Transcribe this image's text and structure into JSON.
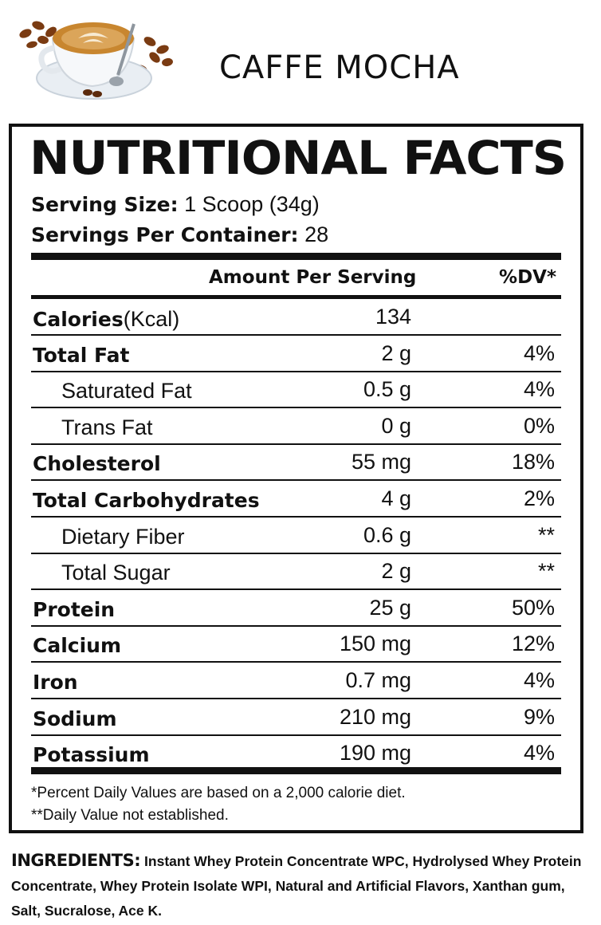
{
  "header": {
    "flavor": "CAFFE MOCHA",
    "image": "coffee-cup-with-beans"
  },
  "panel": {
    "title": "NUTRITIONAL FACTS",
    "serving_size_label": "Serving Size:",
    "serving_size_value": "1 Scoop (34g)",
    "servings_label": "Servings Per Container:",
    "servings_value": "28",
    "col_amount": "Amount Per Serving",
    "col_dv": "%DV*"
  },
  "rows": [
    {
      "name": "Calories",
      "unit": "(Kcal)",
      "amount": "134",
      "dv": "",
      "bold": true,
      "indent": false
    },
    {
      "name": "Total Fat",
      "unit": "",
      "amount": "2 g",
      "dv": "4%",
      "bold": true,
      "indent": false
    },
    {
      "name": "Saturated Fat",
      "unit": "",
      "amount": "0.5 g",
      "dv": "4%",
      "bold": false,
      "indent": true
    },
    {
      "name": "Trans Fat",
      "unit": "",
      "amount": "0 g",
      "dv": "0%",
      "bold": false,
      "indent": true
    },
    {
      "name": "Cholesterol",
      "unit": "",
      "amount": "55 mg",
      "dv": "18%",
      "bold": true,
      "indent": false
    },
    {
      "name": "Total Carbohydrates",
      "unit": "",
      "amount": "4 g",
      "dv": "2%",
      "bold": true,
      "indent": false
    },
    {
      "name": "Dietary Fiber",
      "unit": "",
      "amount": "0.6 g",
      "dv": "**",
      "bold": false,
      "indent": true
    },
    {
      "name": "Total Sugar",
      "unit": "",
      "amount": "2 g",
      "dv": "**",
      "bold": false,
      "indent": true
    },
    {
      "name": "Protein",
      "unit": "",
      "amount": "25 g",
      "dv": "50%",
      "bold": true,
      "indent": false
    },
    {
      "name": "Calcium",
      "unit": "",
      "amount": "150 mg",
      "dv": "12%",
      "bold": true,
      "indent": false
    },
    {
      "name": "Iron",
      "unit": "",
      "amount": "0.7 mg",
      "dv": "4%",
      "bold": true,
      "indent": false
    },
    {
      "name": "Sodium",
      "unit": "",
      "amount": "210 mg",
      "dv": "9%",
      "bold": true,
      "indent": false
    },
    {
      "name": "Potassium",
      "unit": "",
      "amount": "190 mg",
      "dv": "4%",
      "bold": true,
      "indent": false
    }
  ],
  "footnotes": {
    "dv_note": "*Percent Daily Values are based on a 2,000 calorie diet.",
    "na_note": "**Daily Value not established."
  },
  "ingredients": {
    "label": "INGREDIENTS:",
    "text": "Instant Whey Protein Concentrate WPC, Hydrolysed Whey Protein Concentrate, Whey Protein Isolate WPI, Natural and Artificial Flavors, Xanthan gum, Salt, Sucralose, Ace K."
  }
}
